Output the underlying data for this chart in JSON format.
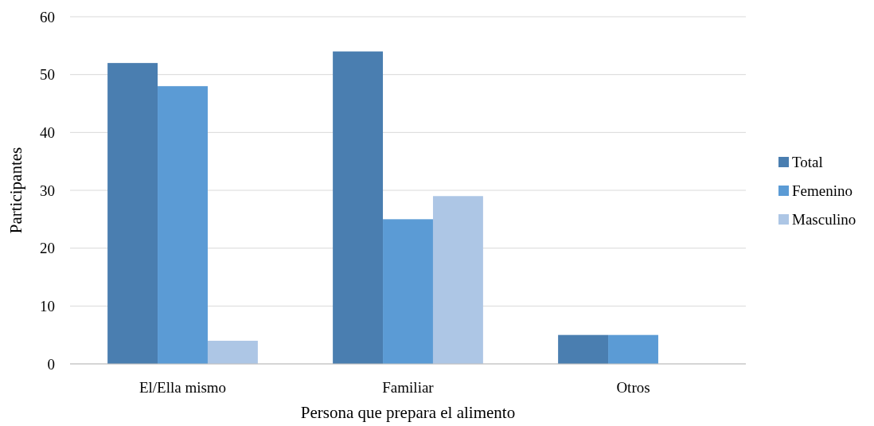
{
  "chart_data": {
    "type": "bar",
    "xlabel": "Persona que prepara el alimento",
    "ylabel": "Participantes",
    "categories": [
      "El/Ella mismo",
      "Familiar",
      "Otros"
    ],
    "series": [
      {
        "name": "Total",
        "color": "#4a7eb0",
        "values": [
          52,
          54,
          5
        ]
      },
      {
        "name": "Femenino",
        "color": "#5b9bd5",
        "values": [
          48,
          25,
          5
        ]
      },
      {
        "name": "Masculino",
        "color": "#adc6e5",
        "values": [
          4,
          29,
          0
        ]
      }
    ],
    "ylim": [
      0,
      60
    ],
    "yticks": [
      0,
      10,
      20,
      30,
      40,
      50,
      60
    ],
    "grid": "y",
    "legend": "right"
  }
}
